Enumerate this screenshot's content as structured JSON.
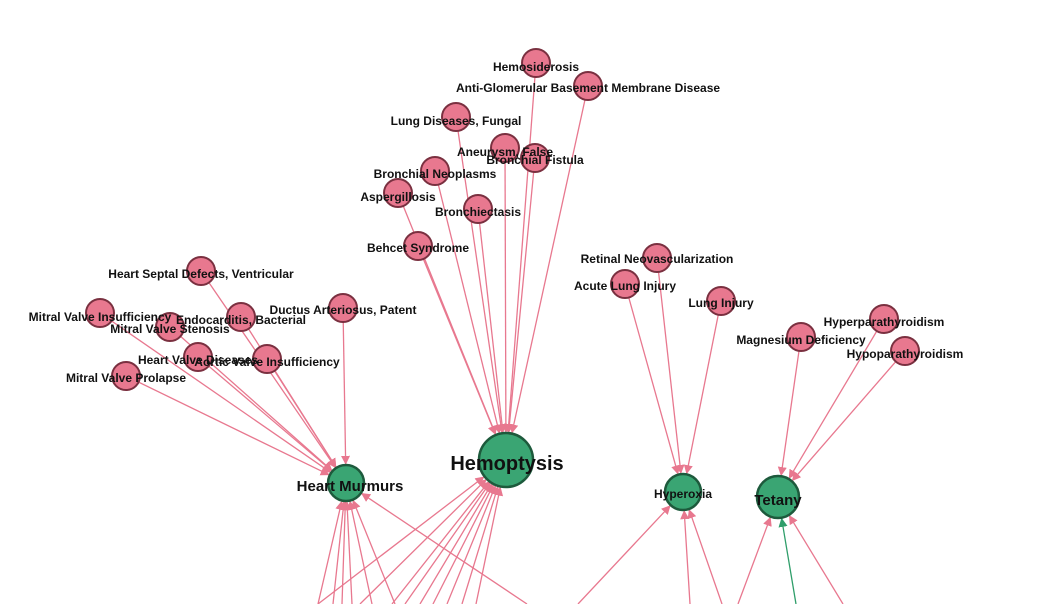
{
  "graph": {
    "colors": {
      "disease": "#e8788f",
      "symptom": "#3aa573",
      "edge": "#e8788f",
      "edge_alt": "#2f9e6a"
    },
    "targets": [
      {
        "id": "hemoptysis",
        "label": "Hemoptysis"
      },
      {
        "id": "heart-murmurs",
        "label": "Heart Murmurs"
      },
      {
        "id": "hyperoxia",
        "label": "Hyperoxia"
      },
      {
        "id": "tetany",
        "label": "Tetany"
      }
    ],
    "sources": [
      {
        "id": "hemosiderosis",
        "label": "Hemosiderosis",
        "target": "hemoptysis"
      },
      {
        "id": "anti-gbm",
        "label": "Anti-Glomerular Basement Membrane Disease",
        "target": "hemoptysis"
      },
      {
        "id": "lung-diseases-fungal",
        "label": "Lung Diseases, Fungal",
        "target": "hemoptysis"
      },
      {
        "id": "aneurysm-false",
        "label": "Aneurysm, False",
        "target": "hemoptysis"
      },
      {
        "id": "bronchial-fistula",
        "label": "Bronchial Fistula",
        "target": "hemoptysis"
      },
      {
        "id": "bronchial-neoplasms",
        "label": "Bronchial Neoplasms",
        "target": "hemoptysis"
      },
      {
        "id": "aspergillosis",
        "label": "Aspergillosis",
        "target": "hemoptysis"
      },
      {
        "id": "bronchiectasis",
        "label": "Bronchiectasis",
        "target": "hemoptysis"
      },
      {
        "id": "behcet-syndrome",
        "label": "Behcet Syndrome",
        "target": "hemoptysis"
      },
      {
        "id": "heart-septal-defects",
        "label": "Heart Septal Defects, Ventricular",
        "target": "heart-murmurs"
      },
      {
        "id": "ductus-arteriosus",
        "label": "Ductus Arteriosus, Patent",
        "target": "heart-murmurs"
      },
      {
        "id": "mitral-insufficiency",
        "label": "Mitral Valve Insufficiency",
        "target": "heart-murmurs"
      },
      {
        "id": "endocarditis-bacterial",
        "label": "Endocarditis, Bacterial",
        "target": "heart-murmurs"
      },
      {
        "id": "mitral-stenosis",
        "label": "Mitral Valve Stenosis",
        "target": "heart-murmurs"
      },
      {
        "id": "heart-valve-diseases",
        "label": "Heart Valve Diseases",
        "target": "heart-murmurs"
      },
      {
        "id": "aortic-insufficiency",
        "label": "Aortic Valve Insufficiency",
        "target": "heart-murmurs"
      },
      {
        "id": "mitral-prolapse",
        "label": "Mitral Valve Prolapse",
        "target": "heart-murmurs"
      },
      {
        "id": "retinal-neovascularization",
        "label": "Retinal Neovascularization",
        "target": "hyperoxia"
      },
      {
        "id": "acute-lung-injury",
        "label": "Acute Lung Injury",
        "target": "hyperoxia"
      },
      {
        "id": "lung-injury",
        "label": "Lung Injury",
        "target": "hyperoxia"
      },
      {
        "id": "magnesium-deficiency",
        "label": "Magnesium Deficiency",
        "target": "tetany"
      },
      {
        "id": "hyperparathyroidism",
        "label": "Hyperparathyroidism",
        "target": "tetany"
      },
      {
        "id": "hypoparathyroidism",
        "label": "Hypoparathyroidism",
        "target": "tetany"
      }
    ]
  }
}
